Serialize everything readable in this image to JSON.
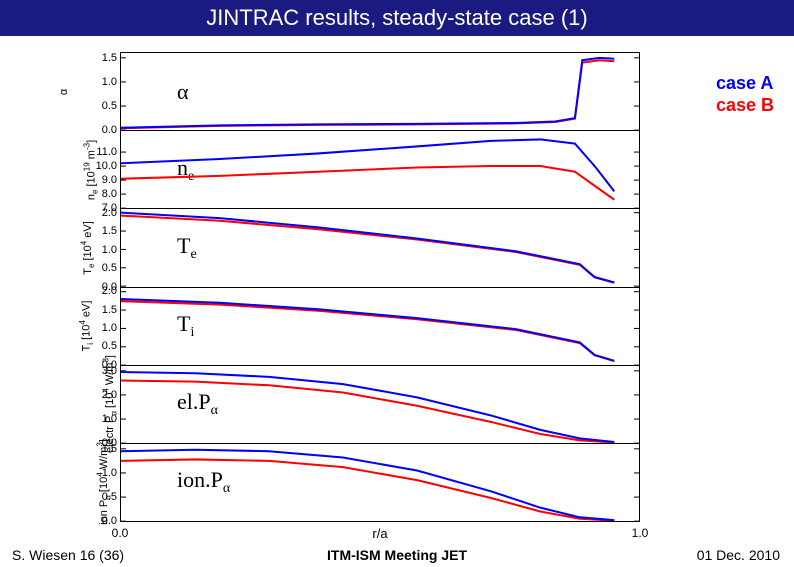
{
  "title": "JINTRAC results, steady-state case (1)",
  "legend": {
    "caseA": "case A",
    "caseB": "case B"
  },
  "colors": {
    "caseA": "#0000ff",
    "caseB": "#ff0000",
    "axis": "#000000",
    "bg": "#ffffff",
    "titlebar": "#1a1a80"
  },
  "line_width": 2,
  "xaxis": {
    "label": "r/a",
    "min": 0.0,
    "max": 1.05,
    "ticks": [
      "0.0",
      "1.0"
    ]
  },
  "panels": [
    {
      "key": "alpha",
      "ylabel_html": "&alpha;",
      "inlabel_html": "&alpha;",
      "ymin": 0.0,
      "ymax": 1.6,
      "yticks": [
        0.0,
        0.5,
        1.0,
        1.5
      ],
      "series": {
        "A": [
          [
            0.0,
            0.05
          ],
          [
            0.2,
            0.1
          ],
          [
            0.4,
            0.12
          ],
          [
            0.6,
            0.13
          ],
          [
            0.8,
            0.15
          ],
          [
            0.88,
            0.18
          ],
          [
            0.92,
            0.25
          ],
          [
            0.935,
            1.45
          ],
          [
            0.97,
            1.5
          ],
          [
            1.0,
            1.48
          ]
        ],
        "B": [
          [
            0.0,
            0.04
          ],
          [
            0.2,
            0.09
          ],
          [
            0.4,
            0.11
          ],
          [
            0.6,
            0.12
          ],
          [
            0.8,
            0.14
          ],
          [
            0.88,
            0.17
          ],
          [
            0.92,
            0.24
          ],
          [
            0.935,
            1.4
          ],
          [
            0.97,
            1.45
          ],
          [
            1.0,
            1.43
          ]
        ]
      }
    },
    {
      "key": "ne",
      "ylabel_html": "n<sub>e</sub> [10<sup>19</sup> m<sup>-3</sup>]",
      "inlabel_html": "n<sub>e</sub>",
      "ymin": 7.0,
      "ymax": 12.5,
      "yticks": [
        7.0,
        8.0,
        9.0,
        10.0,
        11.0
      ],
      "series": {
        "A": [
          [
            0.0,
            10.2
          ],
          [
            0.2,
            10.5
          ],
          [
            0.4,
            10.9
          ],
          [
            0.6,
            11.4
          ],
          [
            0.75,
            11.8
          ],
          [
            0.85,
            11.9
          ],
          [
            0.92,
            11.6
          ],
          [
            0.96,
            10.0
          ],
          [
            1.0,
            8.2
          ]
        ],
        "B": [
          [
            0.0,
            9.1
          ],
          [
            0.2,
            9.3
          ],
          [
            0.4,
            9.6
          ],
          [
            0.6,
            9.9
          ],
          [
            0.75,
            10.0
          ],
          [
            0.85,
            10.0
          ],
          [
            0.92,
            9.6
          ],
          [
            0.96,
            8.6
          ],
          [
            1.0,
            7.6
          ]
        ]
      }
    },
    {
      "key": "Te",
      "ylabel_html": "T<sub>e</sub> [10<sup>4</sup> eV]",
      "inlabel_html": "T<sub>e</sub>",
      "ymin": 0.0,
      "ymax": 2.1,
      "yticks": [
        0.0,
        0.5,
        1.0,
        1.5,
        2.0
      ],
      "series": {
        "A": [
          [
            0.0,
            2.0
          ],
          [
            0.2,
            1.85
          ],
          [
            0.4,
            1.6
          ],
          [
            0.6,
            1.3
          ],
          [
            0.8,
            0.95
          ],
          [
            0.93,
            0.6
          ],
          [
            0.96,
            0.25
          ],
          [
            1.0,
            0.1
          ]
        ],
        "B": [
          [
            0.0,
            1.92
          ],
          [
            0.2,
            1.78
          ],
          [
            0.4,
            1.55
          ],
          [
            0.6,
            1.27
          ],
          [
            0.8,
            0.93
          ],
          [
            0.93,
            0.58
          ],
          [
            0.96,
            0.24
          ],
          [
            1.0,
            0.09
          ]
        ]
      }
    },
    {
      "key": "Ti",
      "ylabel_html": "T<sub>i</sub> [10<sup>4</sup> eV]",
      "inlabel_html": "T<sub>i</sub>",
      "ymin": 0.0,
      "ymax": 2.1,
      "yticks": [
        0.0,
        0.5,
        1.0,
        1.5,
        2.0
      ],
      "series": {
        "A": [
          [
            0.0,
            1.8
          ],
          [
            0.2,
            1.7
          ],
          [
            0.4,
            1.52
          ],
          [
            0.6,
            1.28
          ],
          [
            0.8,
            0.98
          ],
          [
            0.93,
            0.62
          ],
          [
            0.96,
            0.28
          ],
          [
            1.0,
            0.12
          ]
        ],
        "B": [
          [
            0.0,
            1.74
          ],
          [
            0.2,
            1.65
          ],
          [
            0.4,
            1.48
          ],
          [
            0.6,
            1.25
          ],
          [
            0.8,
            0.96
          ],
          [
            0.93,
            0.6
          ],
          [
            0.96,
            0.27
          ],
          [
            1.0,
            0.11
          ]
        ]
      }
    },
    {
      "key": "elP",
      "ylabel_html": "electr P<sub>&alpha;</sub> [10<sup>4</sup> W/m<sup>3</sup>]",
      "inlabel_html": "el.P<sub>&alpha;</sub>",
      "ymin": 0.0,
      "ymax": 3.2,
      "yticks": [
        0.0,
        1.0,
        2.0,
        3.0
      ],
      "series": {
        "A": [
          [
            0.0,
            2.95
          ],
          [
            0.15,
            2.9
          ],
          [
            0.3,
            2.75
          ],
          [
            0.45,
            2.45
          ],
          [
            0.6,
            1.9
          ],
          [
            0.75,
            1.15
          ],
          [
            0.85,
            0.55
          ],
          [
            0.93,
            0.2
          ],
          [
            1.0,
            0.05
          ]
        ],
        "B": [
          [
            0.0,
            2.6
          ],
          [
            0.15,
            2.55
          ],
          [
            0.3,
            2.4
          ],
          [
            0.45,
            2.1
          ],
          [
            0.6,
            1.55
          ],
          [
            0.75,
            0.88
          ],
          [
            0.85,
            0.38
          ],
          [
            0.93,
            0.12
          ],
          [
            1.0,
            0.03
          ]
        ]
      }
    },
    {
      "key": "ionP",
      "ylabel_html": "ion P<sub>&alpha;</sub> [10<sup>4</sup> W/m<sup>3</sup>]",
      "inlabel_html": "ion.P<sub>&alpha;</sub>",
      "ymin": 0.0,
      "ymax": 1.6,
      "yticks": [
        0.0,
        0.5,
        1.0,
        1.5
      ],
      "series": {
        "A": [
          [
            0.0,
            1.45
          ],
          [
            0.15,
            1.48
          ],
          [
            0.3,
            1.45
          ],
          [
            0.45,
            1.32
          ],
          [
            0.6,
            1.05
          ],
          [
            0.75,
            0.62
          ],
          [
            0.85,
            0.28
          ],
          [
            0.93,
            0.08
          ],
          [
            1.0,
            0.02
          ]
        ],
        "B": [
          [
            0.0,
            1.25
          ],
          [
            0.15,
            1.28
          ],
          [
            0.3,
            1.25
          ],
          [
            0.45,
            1.12
          ],
          [
            0.6,
            0.85
          ],
          [
            0.75,
            0.48
          ],
          [
            0.85,
            0.2
          ],
          [
            0.93,
            0.05
          ],
          [
            1.0,
            0.01
          ]
        ]
      }
    }
  ],
  "footer": {
    "left": "S. Wiesen  16 (36)",
    "center": "ITM-ISM Meeting JET",
    "right": "01 Dec. 2010"
  }
}
